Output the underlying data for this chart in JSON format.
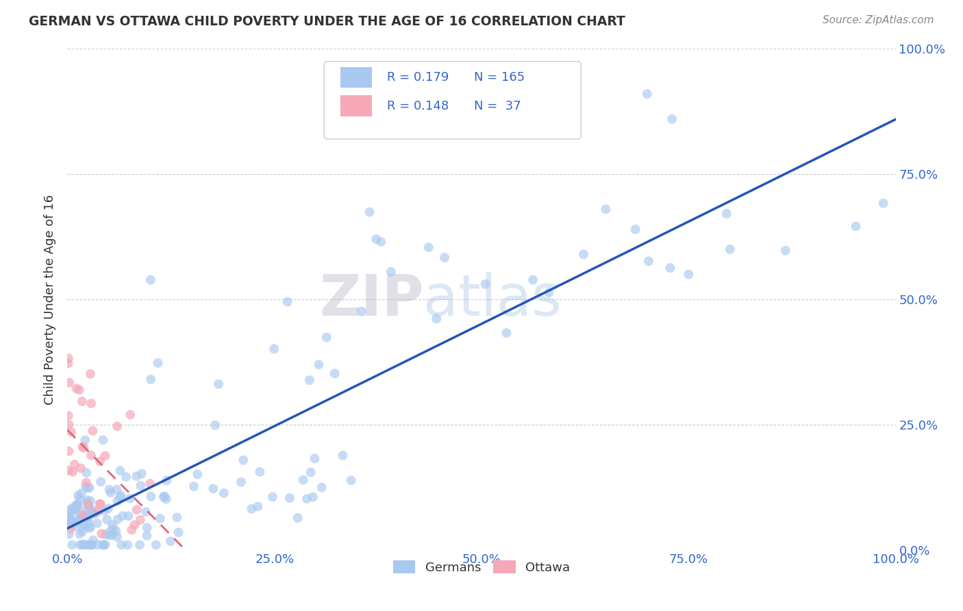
{
  "title": "GERMAN VS OTTAWA CHILD POVERTY UNDER THE AGE OF 16 CORRELATION CHART",
  "source": "Source: ZipAtlas.com",
  "ylabel": "Child Poverty Under the Age of 16",
  "xlim": [
    0,
    1
  ],
  "ylim": [
    0,
    1
  ],
  "xticks": [
    0.0,
    0.25,
    0.5,
    0.75,
    1.0
  ],
  "yticks": [
    0.0,
    0.25,
    0.5,
    0.75,
    1.0
  ],
  "xticklabels": [
    "0.0%",
    "25.0%",
    "50.0%",
    "75.0%",
    "100.0%"
  ],
  "yticklabels": [
    "0.0%",
    "25.0%",
    "50.0%",
    "75.0%",
    "100.0%"
  ],
  "german_R": 0.179,
  "german_N": 165,
  "ottawa_R": 0.148,
  "ottawa_N": 37,
  "german_color": "#a8c8f0",
  "ottawa_color": "#f5a8b8",
  "german_line_color": "#2255bb",
  "ottawa_line_color": "#dd6677",
  "watermark_left": "ZIP",
  "watermark_right": "atlas",
  "legend_labels": [
    "Germans",
    "Ottawa"
  ],
  "background_color": "#ffffff",
  "grid_color": "#cccccc",
  "title_color": "#333333",
  "axis_label_color": "#333333",
  "tick_color": "#3366cc",
  "source_color": "#888888"
}
